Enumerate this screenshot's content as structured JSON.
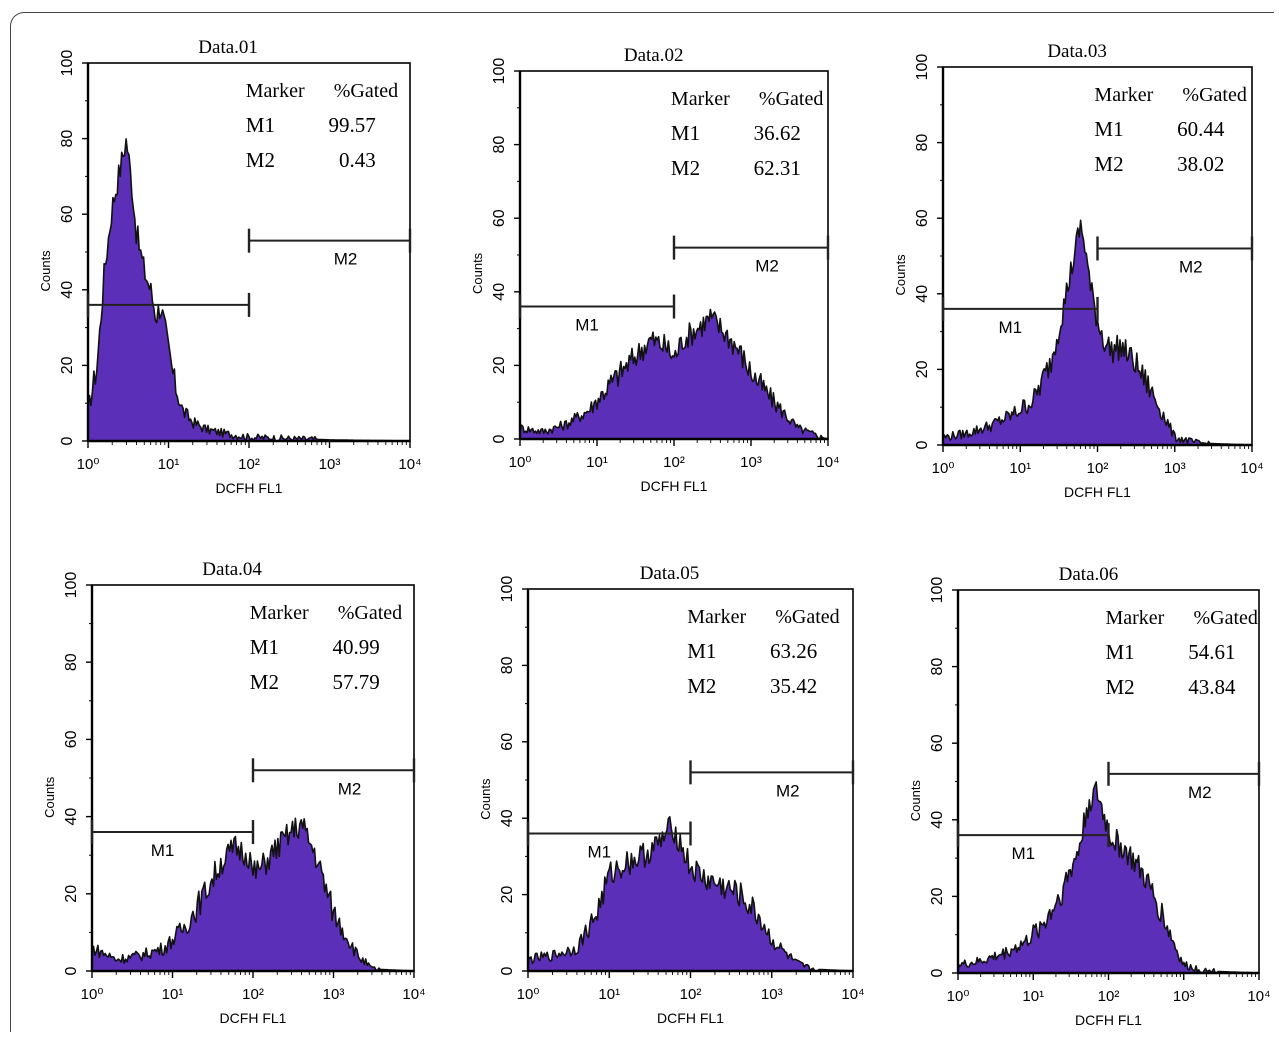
{
  "colors": {
    "fill": "#5b2fb8",
    "outline": "#111111",
    "axis": "#000000"
  },
  "panel_labels": {
    "marker": "Marker",
    "gated": "%Gated"
  },
  "chart_data": [
    {
      "type": "area",
      "title": "Data.01",
      "xlabel": "DCFH FL1",
      "ylabel": "Counts",
      "x_scale": "log",
      "xlim": [
        1,
        10000
      ],
      "ylim": [
        0,
        100
      ],
      "x_ticks": [
        "10⁰",
        "10¹",
        "10²",
        "10³",
        "10⁴"
      ],
      "y_ticks": [
        "0",
        "20",
        "40",
        "60",
        "80",
        "100"
      ],
      "markers": [
        {
          "name": "M1",
          "range": [
            1,
            100
          ],
          "y": 36,
          "pct": "99.57",
          "label_shown": false
        },
        {
          "name": "M2",
          "range": [
            100,
            10000
          ],
          "y": 53,
          "pct": "0.43",
          "label_shown": true
        }
      ],
      "histogram": {
        "x": [
          1,
          1.3,
          1.6,
          2,
          2.5,
          3,
          3.5,
          4,
          5,
          6,
          7,
          8,
          9,
          10,
          12,
          15,
          20,
          30,
          50,
          100,
          200,
          500,
          1000,
          2000,
          10000
        ],
        "counts": [
          8,
          20,
          45,
          62,
          72,
          80,
          68,
          55,
          45,
          40,
          33,
          36,
          30,
          24,
          15,
          8,
          5,
          3,
          2,
          1,
          0.8,
          0.5,
          0.3,
          0.2,
          0
        ]
      }
    },
    {
      "type": "area",
      "title": "Data.02",
      "xlabel": "DCFH FL1",
      "ylabel": "Counts",
      "x_scale": "log",
      "xlim": [
        1,
        10000
      ],
      "ylim": [
        0,
        100
      ],
      "x_ticks": [
        "10⁰",
        "10¹",
        "10²",
        "10³",
        "10⁴"
      ],
      "y_ticks": [
        "0",
        "20",
        "40",
        "60",
        "80",
        "100"
      ],
      "markers": [
        {
          "name": "M1",
          "range": [
            1,
            100
          ],
          "y": 36,
          "pct": "36.62",
          "label_shown": true
        },
        {
          "name": "M2",
          "range": [
            100,
            10000
          ],
          "y": 52,
          "pct": "62.31",
          "label_shown": true
        }
      ],
      "histogram": {
        "x": [
          1,
          2,
          4,
          8,
          15,
          30,
          50,
          80,
          100,
          130,
          200,
          300,
          500,
          700,
          1000,
          2000,
          4000,
          8000,
          10000
        ],
        "counts": [
          3,
          2,
          4,
          8,
          15,
          22,
          27,
          25,
          22,
          27,
          30,
          33,
          28,
          24,
          18,
          10,
          3,
          0.5,
          0
        ]
      }
    },
    {
      "type": "area",
      "title": "Data.03",
      "xlabel": "DCFH FL1",
      "ylabel": "Counts",
      "x_scale": "log",
      "xlim": [
        1,
        10000
      ],
      "ylim": [
        0,
        100
      ],
      "x_ticks": [
        "10⁰",
        "10¹",
        "10²",
        "10³",
        "10⁴"
      ],
      "y_ticks": [
        "0",
        "20",
        "40",
        "60",
        "80",
        "100"
      ],
      "markers": [
        {
          "name": "M1",
          "range": [
            1,
            100
          ],
          "y": 36,
          "pct": "60.44",
          "label_shown": true
        },
        {
          "name": "M2",
          "range": [
            100,
            10000
          ],
          "y": 52,
          "pct": "38.02",
          "label_shown": true
        }
      ],
      "histogram": {
        "x": [
          1,
          2,
          4,
          8,
          15,
          25,
          35,
          50,
          60,
          70,
          80,
          100,
          120,
          150,
          200,
          300,
          500,
          800,
          1000,
          2000,
          10000
        ],
        "counts": [
          2,
          3,
          5,
          8,
          12,
          22,
          35,
          50,
          58,
          52,
          42,
          33,
          28,
          25,
          26,
          22,
          14,
          6,
          2,
          0.5,
          0
        ]
      }
    },
    {
      "type": "area",
      "title": "Data.04",
      "xlabel": "DCFH FL1",
      "ylabel": "Counts",
      "x_scale": "log",
      "xlim": [
        1,
        10000
      ],
      "ylim": [
        0,
        100
      ],
      "x_ticks": [
        "10⁰",
        "10¹",
        "10²",
        "10³",
        "10⁴"
      ],
      "y_ticks": [
        "0",
        "20",
        "40",
        "60",
        "80",
        "100"
      ],
      "markers": [
        {
          "name": "M1",
          "range": [
            1,
            100
          ],
          "y": 36,
          "pct": "40.99",
          "label_shown": true
        },
        {
          "name": "M2",
          "range": [
            100,
            10000
          ],
          "y": 52,
          "pct": "57.79",
          "label_shown": true
        }
      ],
      "histogram": {
        "x": [
          1,
          2,
          4,
          8,
          15,
          25,
          40,
          60,
          90,
          100,
          130,
          200,
          300,
          400,
          600,
          1000,
          2000,
          3000,
          10000
        ],
        "counts": [
          6,
          3,
          4,
          6,
          12,
          20,
          28,
          32,
          30,
          25,
          27,
          32,
          36,
          38,
          30,
          15,
          4,
          0.5,
          0
        ]
      }
    },
    {
      "type": "area",
      "title": "Data.05",
      "xlabel": "DCFH FL1",
      "ylabel": "Counts",
      "x_scale": "log",
      "xlim": [
        1,
        10000
      ],
      "ylim": [
        0,
        100
      ],
      "x_ticks": [
        "10⁰",
        "10¹",
        "10²",
        "10³",
        "10⁴"
      ],
      "y_ticks": [
        "0",
        "20",
        "40",
        "60",
        "80",
        "100"
      ],
      "markers": [
        {
          "name": "M1",
          "range": [
            1,
            100
          ],
          "y": 36,
          "pct": "63.26",
          "label_shown": true
        },
        {
          "name": "M2",
          "range": [
            100,
            10000
          ],
          "y": 52,
          "pct": "35.42",
          "label_shown": true
        }
      ],
      "histogram": {
        "x": [
          1,
          2,
          4,
          7,
          10,
          15,
          25,
          40,
          60,
          80,
          100,
          150,
          250,
          400,
          700,
          1000,
          2000,
          3000,
          10000
        ],
        "counts": [
          3,
          4,
          6,
          15,
          25,
          28,
          30,
          33,
          38,
          32,
          27,
          24,
          22,
          20,
          14,
          8,
          2,
          0.5,
          0
        ]
      }
    },
    {
      "type": "area",
      "title": "Data.06",
      "xlabel": "DCFH FL1",
      "ylabel": "Counts",
      "x_scale": "log",
      "xlim": [
        1,
        10000
      ],
      "ylim": [
        0,
        100
      ],
      "x_ticks": [
        "10⁰",
        "10¹",
        "10²",
        "10³",
        "10⁴"
      ],
      "y_ticks": [
        "0",
        "20",
        "40",
        "60",
        "80",
        "100"
      ],
      "markers": [
        {
          "name": "M1",
          "range": [
            1,
            100
          ],
          "y": 36,
          "pct": "54.61",
          "label_shown": true
        },
        {
          "name": "M2",
          "range": [
            100,
            10000
          ],
          "y": 52,
          "pct": "43.84",
          "label_shown": true
        }
      ],
      "histogram": {
        "x": [
          1,
          2,
          4,
          8,
          15,
          25,
          40,
          55,
          70,
          90,
          110,
          150,
          200,
          300,
          500,
          800,
          1000,
          2000,
          10000
        ],
        "counts": [
          2,
          3,
          5,
          8,
          14,
          22,
          32,
          45,
          47,
          40,
          35,
          33,
          30,
          25,
          16,
          6,
          2,
          0.5,
          0
        ]
      }
    }
  ]
}
